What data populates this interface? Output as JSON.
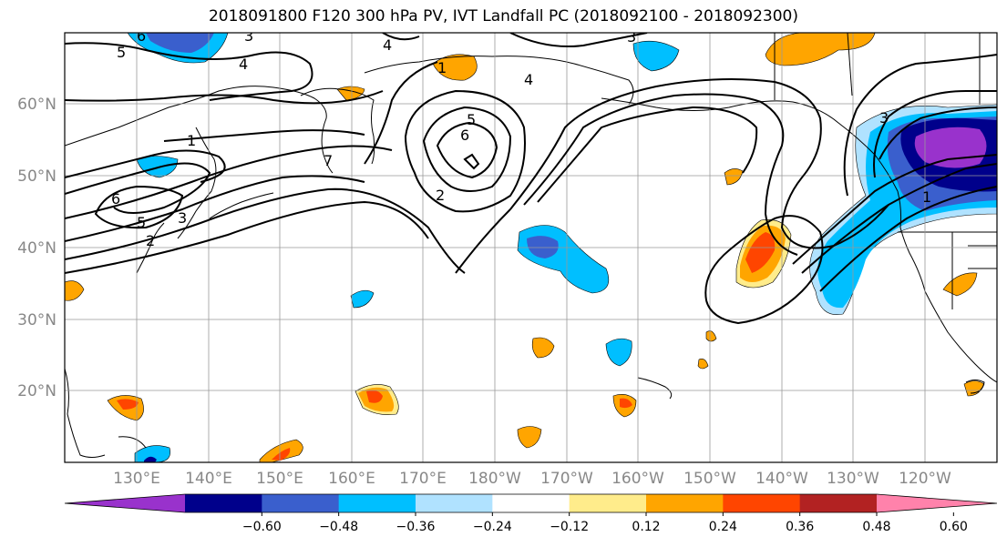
{
  "title": "2018091800 F120 300 hPa PV, IVT Landfall PC (2018092100 - 2018092300)",
  "map": {
    "lon_labels": [
      "130°E",
      "140°E",
      "150°E",
      "160°E",
      "170°E",
      "180°W",
      "170°W",
      "160°W",
      "150°W",
      "140°W",
      "130°W",
      "120°W"
    ],
    "lat_labels": [
      "60°N",
      "50°N",
      "40°N",
      "30°N",
      "20°N"
    ],
    "contour_labels": [
      "6",
      "5",
      "4",
      "3",
      "4",
      "3",
      "4",
      "5",
      "6",
      "2",
      "1",
      "7",
      "6",
      "5",
      "3",
      "2",
      "1",
      "3",
      "1"
    ],
    "grid": true
  },
  "colorbar": {
    "colors": [
      "#9932cc",
      "#00008b",
      "#3a5fcd",
      "#00bfff",
      "#b0e2ff",
      "#ffffff",
      "#ffec8b",
      "#ffa500",
      "#ff4500",
      "#b22222",
      "#ff82ab"
    ],
    "labels": [
      "−0.60",
      "−0.48",
      "−0.36",
      "−0.24",
      "−0.12",
      "0.12",
      "0.24",
      "0.36",
      "0.48",
      "0.60"
    ]
  }
}
